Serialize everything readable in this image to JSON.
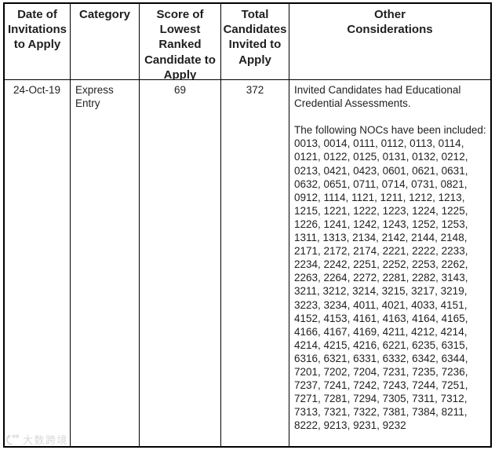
{
  "page": {
    "watermark_text": "大数跨境"
  },
  "table": {
    "headers": [
      {
        "label": "Date of Invitations to Apply",
        "lines": [
          "Date of",
          "Invitations",
          "to Apply"
        ]
      },
      {
        "label": "Category",
        "lines": [
          "Category"
        ]
      },
      {
        "label": "Score of Lowest Ranked Candidate to Apply",
        "lines": [
          "Score of",
          "Lowest",
          "Ranked",
          "Candidate to",
          "Apply"
        ]
      },
      {
        "label": "Total Candidates Invited to Apply",
        "lines": [
          "Total",
          "Candidates",
          "Invited to",
          "Apply"
        ]
      },
      {
        "label": "Other Considerations",
        "lines": [
          "Other",
          "Considerations"
        ]
      }
    ],
    "row": {
      "date": "24-Oct-19",
      "category_lines": [
        "Express",
        "Entry"
      ],
      "score": "69",
      "total_invited": "372",
      "other_considerations": {
        "paragraph_lines": [
          "Invited Candidates had Educational",
          "Credential Assessments."
        ],
        "noc_intro": "The following NOCs have been included:",
        "noc_lines": [
          "0013, 0014, 0111, 0112, 0113, 0114,",
          "0121, 0122, 0125, 0131, 0132, 0212,",
          "0213, 0421, 0423, 0601, 0621, 0631,",
          "0632, 0651, 0711, 0714, 0731, 0821,",
          "0912, 1114, 1121, 1211, 1212, 1213,",
          "1215, 1221, 1222, 1223, 1224, 1225,",
          "1226, 1241, 1242, 1243, 1252, 1253,",
          "1311, 1313, 2134, 2142, 2144, 2148,",
          "2171, 2172, 2174, 2221, 2222, 2233,",
          "2234, 2242, 2251, 2252, 2253, 2262,",
          "2263, 2264, 2272, 2281, 2282, 3143,",
          "3211, 3212, 3214, 3215, 3217, 3219,",
          "3223, 3234, 4011, 4021, 4033, 4151,",
          "4152, 4153, 4161, 4163, 4164, 4165,",
          "4166, 4167, 4169, 4211, 4212, 4214,",
          "4214, 4215, 4216, 6221, 6235, 6315,",
          "6316, 6321, 6331, 6332, 6342, 6344,",
          "7201, 7202, 7204, 7231, 7235, 7236,",
          "7237, 7241, 7242, 7243, 7244, 7251,",
          "7271, 7281, 7294, 7305, 7311, 7312,",
          "7313, 7321, 7322, 7381, 7384, 8211,",
          "8222, 9213, 9231, 9232"
        ]
      }
    }
  },
  "colors": {
    "border": "#000000",
    "text": "#1f1f1f",
    "watermark": "#d9d9d9",
    "background": "#ffffff"
  }
}
